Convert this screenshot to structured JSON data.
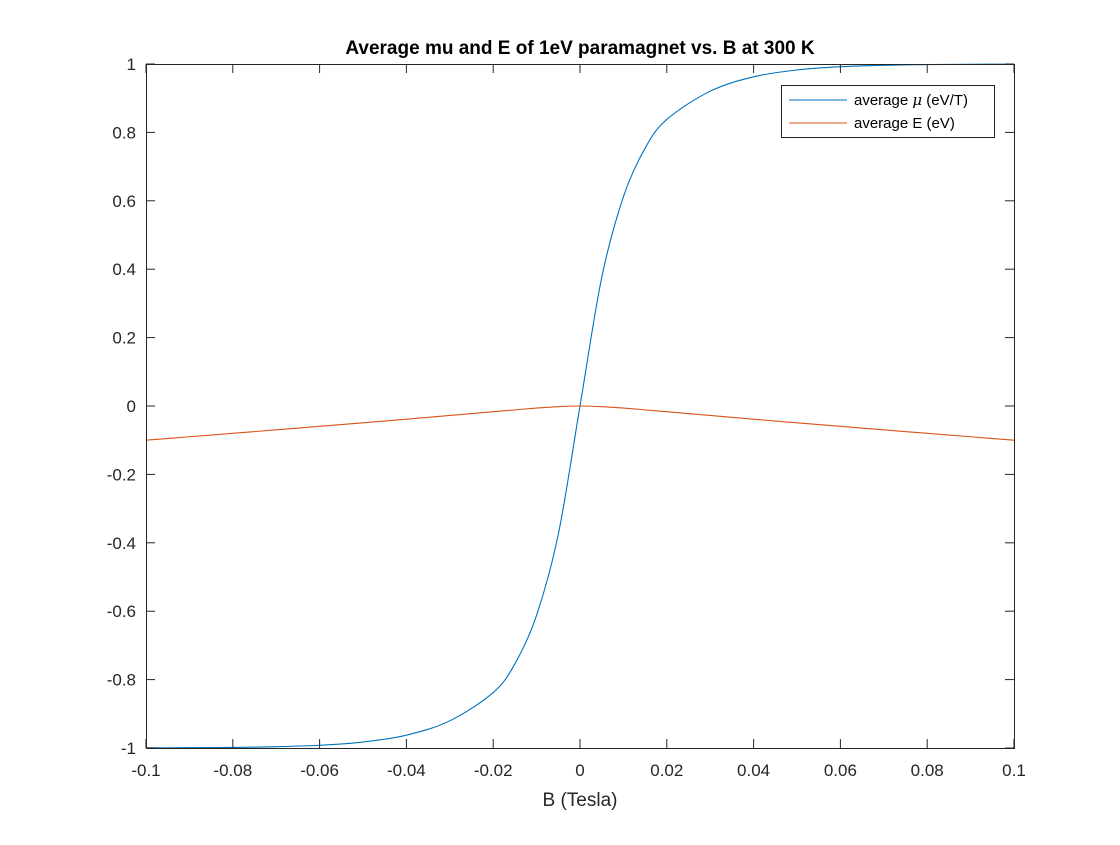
{
  "chart_data": {
    "type": "line",
    "title": "Average mu and E of 1eV paramagnet vs. B at 300 K",
    "xlabel": "B (Tesla)",
    "ylabel": "",
    "xlim": [
      -0.1,
      0.1
    ],
    "ylim": [
      -1,
      1
    ],
    "x_ticks": [
      -0.1,
      -0.08,
      -0.06,
      -0.04,
      -0.02,
      0,
      0.02,
      0.04,
      0.06,
      0.08,
      0.1
    ],
    "x_tick_labels": [
      "-0.1",
      "-0.08",
      "-0.06",
      "-0.04",
      "-0.02",
      "0",
      "0.02",
      "0.04",
      "0.06",
      "0.08",
      "0.1"
    ],
    "y_ticks": [
      1,
      0.8,
      0.6,
      0.4,
      0.2,
      0,
      -0.2,
      -0.4,
      -0.6,
      -0.8,
      -1
    ],
    "y_tick_labels": [
      "1",
      "0.8",
      "0.6",
      "0.4",
      "0.2",
      "0",
      "-0.2",
      "-0.4",
      "-0.6",
      "-0.8",
      "-1"
    ],
    "grid": false,
    "box": true,
    "legend_location": "top-right",
    "series": [
      {
        "name": "average μ (eV/T)",
        "legend_prefix": "average ",
        "legend_symbol": "μ",
        "legend_suffix": " (eV/T)",
        "color": "#0072BD",
        "x": [
          -0.1,
          -0.09,
          -0.08,
          -0.07,
          -0.06,
          -0.05,
          -0.04,
          -0.03,
          -0.02,
          -0.015,
          -0.01,
          -0.005,
          0,
          0.005,
          0.01,
          0.015,
          0.02,
          0.03,
          0.04,
          0.05,
          0.06,
          0.07,
          0.08,
          0.09,
          0.1
        ],
        "y": [
          -0.9996,
          -0.9992,
          -0.9983,
          -0.9963,
          -0.992,
          -0.9826,
          -0.9625,
          -0.9205,
          -0.8379,
          -0.7538,
          -0.6116,
          -0.3752,
          0,
          0.3752,
          0.6116,
          0.7538,
          0.8379,
          0.9205,
          0.9625,
          0.9826,
          0.992,
          0.9963,
          0.9983,
          0.9992,
          0.9996
        ]
      },
      {
        "name": "average E (eV)",
        "color": "#D95319",
        "x": [
          -0.1,
          -0.09,
          -0.08,
          -0.07,
          -0.06,
          -0.05,
          -0.04,
          -0.03,
          -0.02,
          -0.015,
          -0.01,
          -0.005,
          0,
          0.005,
          0.01,
          0.015,
          0.02,
          0.03,
          0.04,
          0.05,
          0.06,
          0.07,
          0.08,
          0.09,
          0.1
        ],
        "y": [
          -0.09996,
          -0.08993,
          -0.07986,
          -0.06974,
          -0.05952,
          -0.04913,
          -0.0385,
          -0.02762,
          -0.01676,
          -0.01131,
          -0.00612,
          -0.00188,
          0,
          -0.00188,
          -0.00612,
          -0.01131,
          -0.01676,
          -0.02762,
          -0.0385,
          -0.04913,
          -0.05952,
          -0.06974,
          -0.07986,
          -0.08993,
          -0.09996
        ]
      }
    ]
  }
}
